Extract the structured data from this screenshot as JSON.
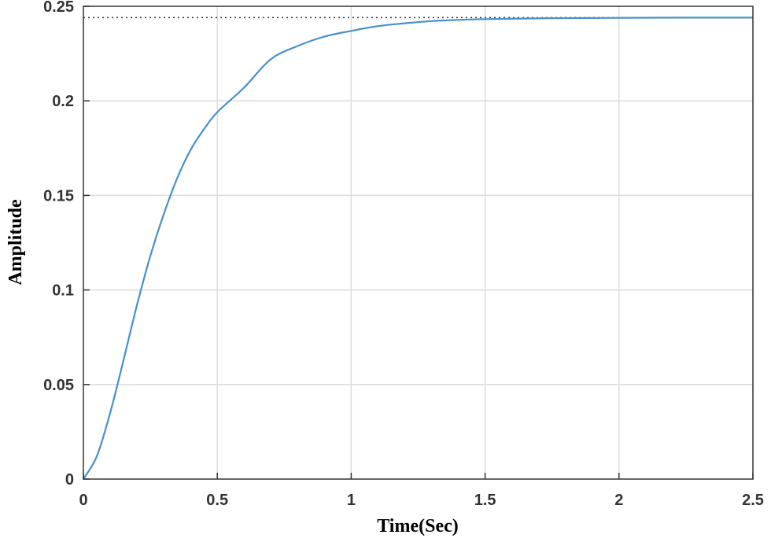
{
  "chart_data": {
    "type": "line",
    "xlabel": "Time(Sec)",
    "ylabel": "Amplitude",
    "xlim": [
      0,
      2.5
    ],
    "ylim": [
      0,
      0.25
    ],
    "xticks": [
      "0",
      "0.5",
      "1",
      "1.5",
      "2",
      "2.5"
    ],
    "yticks": [
      "0",
      "0.05",
      "0.1",
      "0.15",
      "0.2",
      "0.25"
    ],
    "grid": true,
    "steady_state": 0.244,
    "series": [
      {
        "color": "#4a90c8",
        "x": [
          0,
          0.05,
          0.1,
          0.15,
          0.2,
          0.25,
          0.3,
          0.35,
          0.4,
          0.45,
          0.5,
          0.6,
          0.7,
          0.8,
          0.9,
          1.0,
          1.1,
          1.2,
          1.3,
          1.4,
          1.5,
          1.75,
          2.0,
          2.25,
          2.5
        ],
        "y": [
          0,
          0.012,
          0.035,
          0.063,
          0.092,
          0.118,
          0.14,
          0.159,
          0.174,
          0.185,
          0.194,
          0.207,
          0.222,
          0.229,
          0.234,
          0.237,
          0.2395,
          0.241,
          0.2422,
          0.2428,
          0.2432,
          0.2437,
          0.2439,
          0.244,
          0.244
        ]
      }
    ],
    "reference_line": {
      "y": 0.244,
      "style": "dotted",
      "color": "#333333"
    }
  }
}
